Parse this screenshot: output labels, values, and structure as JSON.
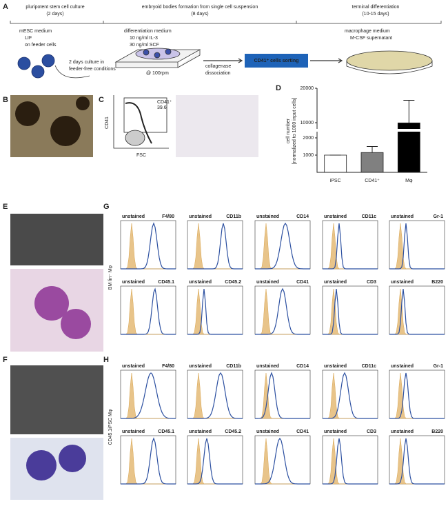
{
  "panel_labels": [
    "A",
    "B",
    "C",
    "D",
    "E",
    "F",
    "G",
    "H"
  ],
  "schematic": {
    "stages": [
      {
        "title": "pluripotent stem cell culture",
        "duration": "(2 days)"
      },
      {
        "title": "embryoid bodies formation from single cell suspension",
        "duration": "(8 days)"
      },
      {
        "title": "terminal differentiation",
        "duration": "(10-15 days)"
      }
    ],
    "media": [
      {
        "name": "mESC medium",
        "items": [
          "LIF",
          "on feeder cells"
        ]
      },
      {
        "name": "differentiation medium",
        "items": [
          "10 ng/ml IL-3",
          "30 ng/ml SCF"
        ]
      },
      {
        "name": "macrophage medium",
        "items": [
          "M-CSF supernatant"
        ]
      }
    ],
    "transfer_note": [
      "2 days culture in",
      "feeder-free conditions"
    ],
    "shaking": "@ 100rpm",
    "dissociation": [
      "collagenase",
      "dissociation"
    ],
    "sorting": "CD41⁺ cells sorting"
  },
  "flow_cytometry": {
    "y_label": "CD41",
    "x_label": "FSC",
    "gate_label": "CD41⁺",
    "gate_percent": "39.6"
  },
  "chart_data": {
    "type": "bar",
    "y_label": [
      "cell number",
      "[normalized to 1000 input cells]"
    ],
    "categories": [
      "iPSC",
      "CD41⁺",
      "Mφ"
    ],
    "values": [
      1000,
      1150,
      9900
    ],
    "errors": [
      0,
      350,
      6600
    ],
    "colors": [
      "#ffffff",
      "#808080",
      "#000000"
    ],
    "ylim": [
      0,
      20000
    ],
    "yticks": [
      1000,
      2000,
      10000,
      20000
    ],
    "axis_break": [
      2000,
      10000
    ]
  },
  "histograms": {
    "unstained_label": "unstained",
    "markers": [
      "F4/80",
      "CD11b",
      "CD14",
      "CD11c",
      "Gr-1",
      "CD45.1",
      "CD45.2",
      "CD41",
      "CD3",
      "B220"
    ],
    "row_labels": [
      "BM lin⁻ Mφ",
      "CD45.1iPSC Mφ"
    ]
  }
}
